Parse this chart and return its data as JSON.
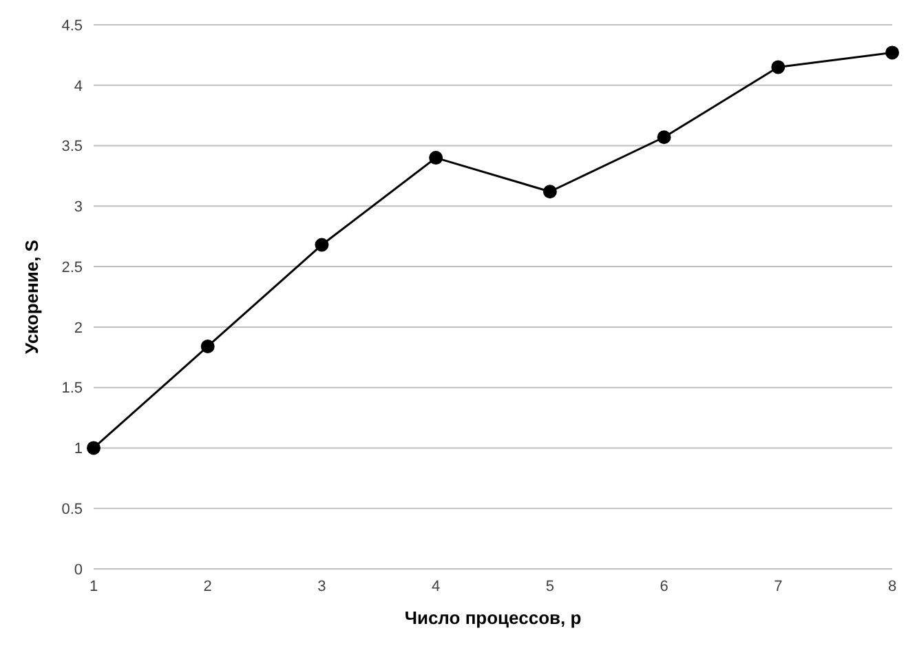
{
  "chart_data": {
    "type": "line",
    "xlabel": "Число процессов, p",
    "ylabel": "Ускорение, S",
    "categories": [
      "1",
      "2",
      "3",
      "4",
      "5",
      "6",
      "7",
      "8"
    ],
    "series": [
      {
        "color": "#000000",
        "values": [
          1.0,
          1.84,
          2.68,
          3.4,
          3.12,
          3.57,
          4.15,
          4.27
        ]
      }
    ],
    "ylim": [
      0,
      4.5
    ],
    "yticks": [
      0,
      0.5,
      1,
      1.5,
      2,
      2.5,
      3,
      3.5,
      4,
      4.5
    ],
    "grid": "y",
    "marker": "circle",
    "line_style": "solid",
    "legend": false
  }
}
